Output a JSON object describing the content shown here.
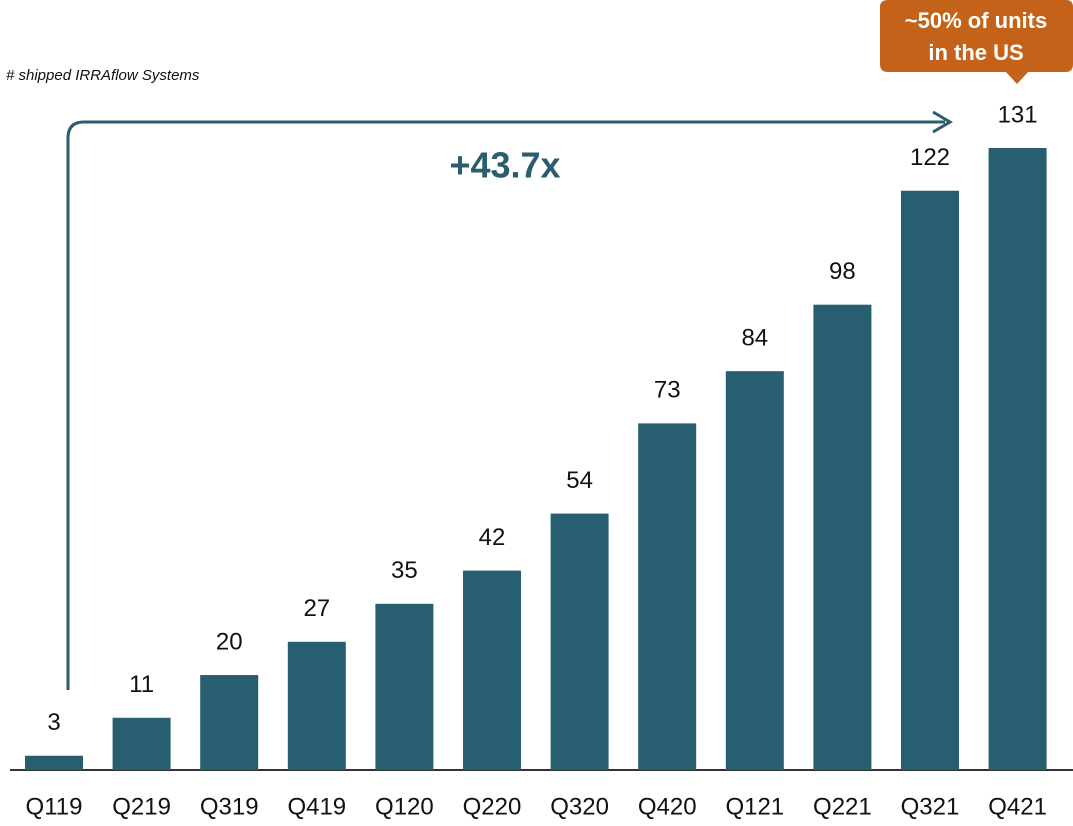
{
  "chart_data": {
    "type": "bar",
    "subtitle": "# shipped IRRAflow Systems",
    "categories": [
      "Q119",
      "Q219",
      "Q319",
      "Q419",
      "Q120",
      "Q220",
      "Q320",
      "Q420",
      "Q121",
      "Q221",
      "Q321",
      "Q421"
    ],
    "values": [
      3,
      11,
      20,
      27,
      35,
      42,
      54,
      73,
      84,
      98,
      122,
      131
    ],
    "color": "#285f70",
    "annotations": [
      "+43.7x",
      "~50% of units",
      "in the US"
    ]
  }
}
